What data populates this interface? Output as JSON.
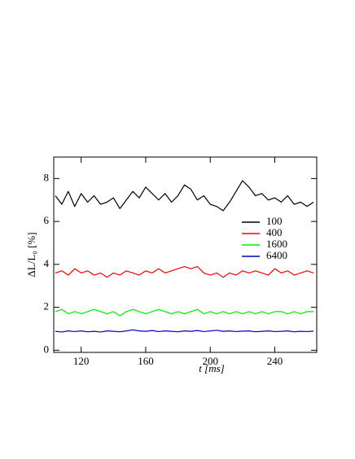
{
  "chart_data": {
    "type": "line",
    "xlabel": "t [ms]",
    "ylabel": "ΔL/L₀ [%]",
    "x": [
      104,
      108,
      112,
      116,
      120,
      124,
      128,
      132,
      136,
      140,
      144,
      148,
      152,
      156,
      160,
      164,
      168,
      172,
      176,
      180,
      184,
      188,
      192,
      196,
      200,
      204,
      208,
      212,
      216,
      220,
      224,
      228,
      232,
      236,
      240,
      244,
      248,
      252,
      256,
      260,
      264
    ],
    "series": [
      {
        "name": "100",
        "color": "#000000",
        "values": [
          7.2,
          6.8,
          7.4,
          6.7,
          7.3,
          6.9,
          7.2,
          6.8,
          6.9,
          7.1,
          6.6,
          7.0,
          7.4,
          7.1,
          7.6,
          7.3,
          7.0,
          7.3,
          6.9,
          7.2,
          7.7,
          7.5,
          7.0,
          7.2,
          6.8,
          6.7,
          6.5,
          6.9,
          7.4,
          7.9,
          7.6,
          7.2,
          7.3,
          7.0,
          7.1,
          6.9,
          7.2,
          6.8,
          6.9,
          6.7,
          6.9
        ]
      },
      {
        "name": "400",
        "color": "#ff0000",
        "values": [
          3.6,
          3.7,
          3.5,
          3.8,
          3.6,
          3.7,
          3.5,
          3.6,
          3.4,
          3.6,
          3.5,
          3.7,
          3.6,
          3.5,
          3.7,
          3.6,
          3.8,
          3.6,
          3.7,
          3.8,
          3.9,
          3.8,
          3.9,
          3.6,
          3.5,
          3.6,
          3.4,
          3.6,
          3.5,
          3.7,
          3.6,
          3.7,
          3.6,
          3.5,
          3.8,
          3.6,
          3.7,
          3.5,
          3.6,
          3.7,
          3.6
        ]
      },
      {
        "name": "1600",
        "color": "#00ee00",
        "values": [
          1.8,
          1.9,
          1.7,
          1.8,
          1.7,
          1.8,
          1.9,
          1.8,
          1.7,
          1.8,
          1.6,
          1.8,
          1.9,
          1.8,
          1.7,
          1.8,
          1.9,
          1.8,
          1.7,
          1.8,
          1.7,
          1.8,
          1.9,
          1.7,
          1.8,
          1.7,
          1.8,
          1.7,
          1.8,
          1.7,
          1.8,
          1.7,
          1.8,
          1.7,
          1.8,
          1.8,
          1.7,
          1.8,
          1.7,
          1.8,
          1.8
        ]
      },
      {
        "name": "6400",
        "color": "#0000cc",
        "values": [
          0.88,
          0.85,
          0.9,
          0.87,
          0.9,
          0.86,
          0.88,
          0.85,
          0.9,
          0.88,
          0.86,
          0.9,
          0.95,
          0.9,
          0.88,
          0.92,
          0.87,
          0.9,
          0.88,
          0.86,
          0.9,
          0.88,
          0.92,
          0.87,
          0.9,
          0.93,
          0.88,
          0.9,
          0.87,
          0.89,
          0.9,
          0.86,
          0.88,
          0.9,
          0.87,
          0.88,
          0.9,
          0.86,
          0.88,
          0.87,
          0.89
        ]
      }
    ],
    "xlim": [
      103,
      266
    ],
    "xticks": [
      120,
      160,
      200,
      240
    ],
    "ylim": [
      -0.1,
      9.0
    ],
    "yticks": [
      0,
      2,
      4,
      6,
      8
    ],
    "legend": "center right",
    "grid": false
  }
}
